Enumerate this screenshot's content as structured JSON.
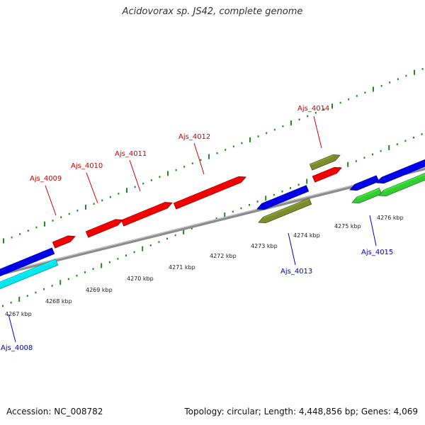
{
  "title": "Acidovorax sp. JS42, complete genome",
  "footer": {
    "accession": "Accession: NC_008782",
    "stats": "Topology: circular; Length: 4,448,856 bp; Genes: 4,069"
  },
  "colors": {
    "backbone": "#8c8c8c",
    "tick": "#1f8a1f",
    "forward_label": "#cc0000",
    "reverse_label": "#0000cc",
    "red": "#f00000",
    "blue": "#0000e6",
    "cyan": "#00e6f0",
    "olive": "#7a8c2e",
    "green": "#33cc33"
  },
  "scale_labels": [
    "4267 kbp",
    "4268 kbp",
    "4269 kbp",
    "4270 kbp",
    "4271 kbp",
    "4272 kbp",
    "4273 kbp",
    "4274 kbp",
    "4275 kbp",
    "4276 kbp"
  ],
  "gene_labels": [
    {
      "text": "Ajs_4009",
      "strand": "forward"
    },
    {
      "text": "Ajs_4010",
      "strand": "forward"
    },
    {
      "text": "Ajs_4011",
      "strand": "forward"
    },
    {
      "text": "Ajs_4012",
      "strand": "forward"
    },
    {
      "text": "Ajs_4014",
      "strand": "forward"
    },
    {
      "text": "Ajs_4008",
      "strand": "reverse"
    },
    {
      "text": "Ajs_4013",
      "strand": "reverse"
    },
    {
      "text": "Ajs_4015",
      "strand": "reverse"
    }
  ]
}
